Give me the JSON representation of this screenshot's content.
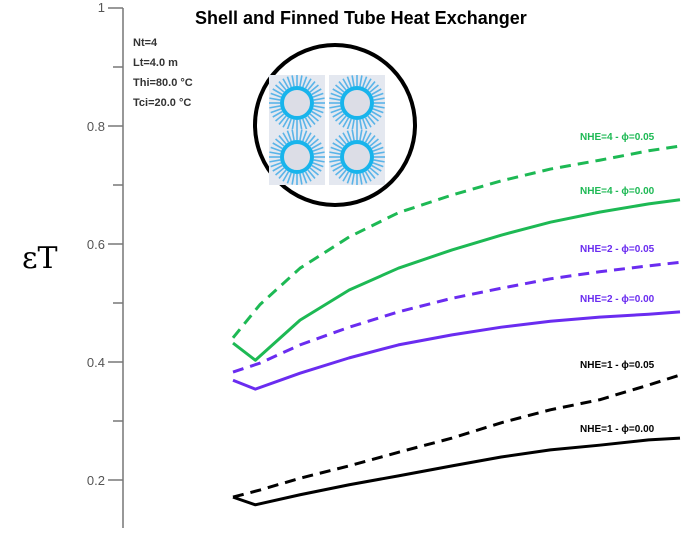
{
  "chart_data": {
    "type": "line",
    "title": "Shell and Finned Tube Heat Exchanger",
    "xlabel": "",
    "ylabel": "εT",
    "ylim": [
      0.2,
      1.0
    ],
    "xlim": [
      0,
      100
    ],
    "yticks": [
      "1",
      "0.8",
      "0.6",
      "0.4",
      "0.2"
    ],
    "parameters": [
      "Nt=4",
      "Lt=4.0 m",
      "Thi=80.0 °C",
      "Tci=20.0 °C"
    ],
    "grid": false,
    "series": [
      {
        "name": "NHE=4 - ϕ=0.05",
        "color": "#1db954",
        "dash": true,
        "x": [
          0,
          6,
          15,
          26,
          37,
          49,
          60,
          71,
          82,
          93,
          100
        ],
        "y": [
          0.441,
          0.497,
          0.559,
          0.612,
          0.653,
          0.683,
          0.707,
          0.727,
          0.742,
          0.758,
          0.766
        ]
      },
      {
        "name": "NHE=4 - ϕ=0.00",
        "color": "#1db954",
        "dash": false,
        "x": [
          0,
          5,
          15,
          26,
          37,
          49,
          60,
          71,
          82,
          93,
          100
        ],
        "y": [
          0.432,
          0.403,
          0.471,
          0.522,
          0.559,
          0.59,
          0.615,
          0.637,
          0.654,
          0.668,
          0.675
        ]
      },
      {
        "name": "NHE=2 - ϕ=0.05",
        "color": "#6a2cf0",
        "dash": true,
        "x": [
          0,
          6,
          15,
          26,
          37,
          49,
          60,
          71,
          82,
          93,
          100
        ],
        "y": [
          0.383,
          0.398,
          0.429,
          0.459,
          0.485,
          0.508,
          0.525,
          0.541,
          0.553,
          0.563,
          0.569
        ]
      },
      {
        "name": "NHE=2 - ϕ=0.00",
        "color": "#6a2cf0",
        "dash": false,
        "x": [
          0,
          5,
          15,
          26,
          37,
          49,
          60,
          71,
          82,
          93,
          100
        ],
        "y": [
          0.369,
          0.354,
          0.381,
          0.407,
          0.429,
          0.446,
          0.459,
          0.469,
          0.476,
          0.481,
          0.485
        ]
      },
      {
        "name": "NHE=1 - ϕ=0.05",
        "color": "#000000",
        "dash": true,
        "x": [
          0,
          6,
          15,
          26,
          37,
          49,
          60,
          71,
          82,
          93,
          100
        ],
        "y": [
          0.171,
          0.183,
          0.203,
          0.224,
          0.247,
          0.271,
          0.297,
          0.319,
          0.336,
          0.361,
          0.378
        ]
      },
      {
        "name": "NHE=1 - ϕ=0.00",
        "color": "#000000",
        "dash": false,
        "x": [
          0,
          5,
          15,
          26,
          37,
          49,
          60,
          71,
          82,
          93,
          100
        ],
        "y": [
          0.171,
          0.158,
          0.175,
          0.192,
          0.207,
          0.224,
          0.239,
          0.251,
          0.259,
          0.268,
          0.271
        ]
      }
    ]
  }
}
